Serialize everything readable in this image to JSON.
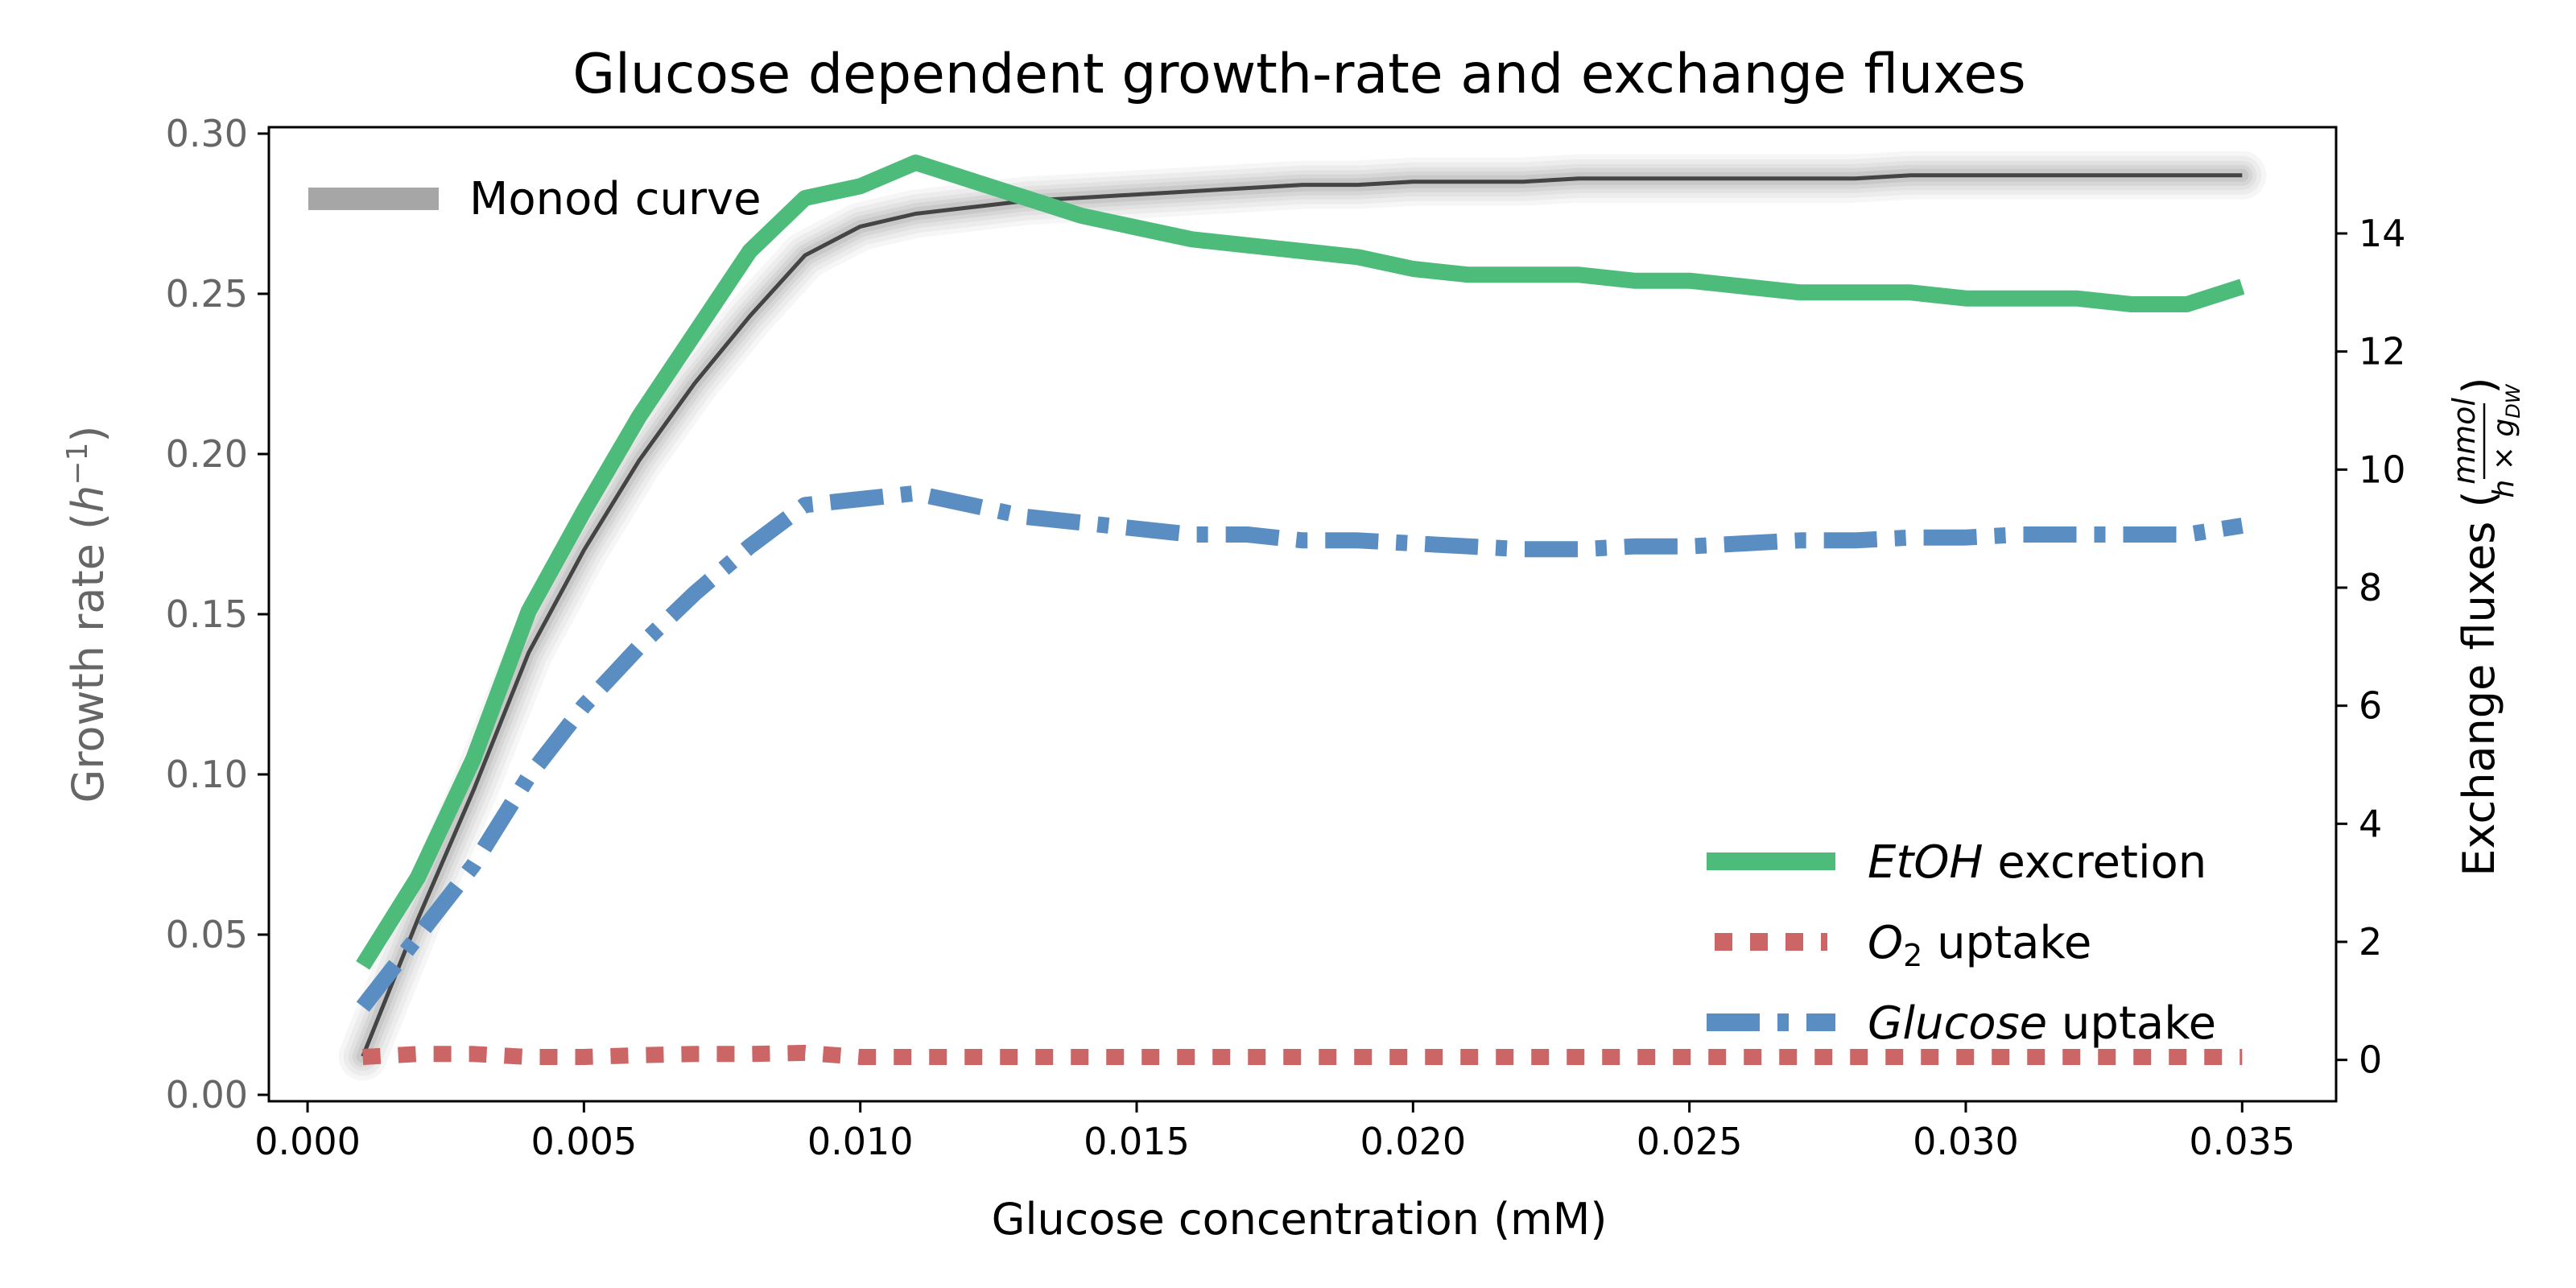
{
  "chart_data": {
    "type": "line",
    "title": "Glucose dependent growth-rate and exchange fluxes",
    "xlabel": "Glucose concentration (mM)",
    "ylabel_left": "Growth rate (h⁻¹)",
    "ylabel_right": "Exchange fluxes (mmol / h × g_DW)",
    "xlim": [
      -0.0007,
      0.0367
    ],
    "ylim_left": [
      -0.002,
      0.302
    ],
    "ylim_right": [
      -0.7,
      15.8
    ],
    "x_ticks": [
      "0.000",
      "0.005",
      "0.010",
      "0.015",
      "0.020",
      "0.025",
      "0.030",
      "0.035"
    ],
    "y_ticks_left": [
      "0.00",
      "0.05",
      "0.10",
      "0.15",
      "0.20",
      "0.25",
      "0.30"
    ],
    "y_ticks_right": [
      "0",
      "2",
      "4",
      "6",
      "8",
      "10",
      "12",
      "14"
    ],
    "grid": false,
    "legend_left": {
      "placement": "top-left",
      "entries": [
        "Monod curve"
      ]
    },
    "legend_right": {
      "placement": "bottom-right",
      "entries": [
        "EtOH excretion",
        "O2 uptake",
        "Glucose uptake"
      ]
    },
    "series": [
      {
        "name": "Monod curve",
        "axis": "left",
        "color": "#444444",
        "x": [
          0.001,
          0.002,
          0.003,
          0.004,
          0.005,
          0.006,
          0.007,
          0.008,
          0.009,
          0.01,
          0.011,
          0.012,
          0.013,
          0.014,
          0.015,
          0.016,
          0.017,
          0.018,
          0.019,
          0.02,
          0.021,
          0.022,
          0.023,
          0.024,
          0.025,
          0.026,
          0.027,
          0.028,
          0.029,
          0.03,
          0.031,
          0.032,
          0.033,
          0.034,
          0.035
        ],
        "values": [
          0.012,
          0.055,
          0.095,
          0.138,
          0.17,
          0.198,
          0.222,
          0.243,
          0.262,
          0.271,
          0.275,
          0.277,
          0.279,
          0.28,
          0.281,
          0.282,
          0.283,
          0.284,
          0.284,
          0.285,
          0.285,
          0.285,
          0.286,
          0.286,
          0.286,
          0.286,
          0.286,
          0.286,
          0.287,
          0.287,
          0.287,
          0.287,
          0.287,
          0.287,
          0.287
        ]
      },
      {
        "name": "EtOH excretion",
        "axis": "right",
        "color": "#4dbb7a",
        "x": [
          0.001,
          0.002,
          0.003,
          0.004,
          0.005,
          0.006,
          0.007,
          0.008,
          0.009,
          0.01,
          0.011,
          0.012,
          0.013,
          0.014,
          0.015,
          0.016,
          0.017,
          0.018,
          0.019,
          0.02,
          0.021,
          0.022,
          0.023,
          0.024,
          0.025,
          0.026,
          0.027,
          0.028,
          0.029,
          0.03,
          0.031,
          0.032,
          0.033,
          0.034,
          0.035
        ],
        "values": [
          1.6,
          3.1,
          5.1,
          7.6,
          9.3,
          10.9,
          12.3,
          13.7,
          14.6,
          14.8,
          15.2,
          14.9,
          14.6,
          14.3,
          14.1,
          13.9,
          13.8,
          13.7,
          13.6,
          13.4,
          13.3,
          13.3,
          13.3,
          13.2,
          13.2,
          13.1,
          13.0,
          13.0,
          13.0,
          12.9,
          12.9,
          12.9,
          12.8,
          12.8,
          13.1
        ]
      },
      {
        "name": "O2 uptake",
        "axis": "right",
        "color": "#cc6666",
        "x": [
          0.001,
          0.002,
          0.003,
          0.004,
          0.005,
          0.006,
          0.007,
          0.008,
          0.009,
          0.01,
          0.011,
          0.012,
          0.013,
          0.014,
          0.015,
          0.016,
          0.017,
          0.018,
          0.019,
          0.02,
          0.021,
          0.022,
          0.023,
          0.024,
          0.025,
          0.026,
          0.027,
          0.028,
          0.029,
          0.03,
          0.031,
          0.032,
          0.033,
          0.034,
          0.035
        ],
        "values": [
          0.05,
          0.1,
          0.1,
          0.05,
          0.05,
          0.08,
          0.1,
          0.1,
          0.12,
          0.05,
          0.05,
          0.05,
          0.05,
          0.05,
          0.05,
          0.05,
          0.05,
          0.05,
          0.05,
          0.05,
          0.05,
          0.05,
          0.05,
          0.05,
          0.05,
          0.05,
          0.05,
          0.05,
          0.05,
          0.05,
          0.05,
          0.05,
          0.05,
          0.05,
          0.05
        ]
      },
      {
        "name": "Glucose uptake",
        "axis": "right",
        "color": "#5a8ec2",
        "x": [
          0.001,
          0.002,
          0.003,
          0.004,
          0.005,
          0.006,
          0.007,
          0.008,
          0.009,
          0.01,
          0.011,
          0.012,
          0.013,
          0.014,
          0.015,
          0.016,
          0.017,
          0.018,
          0.019,
          0.02,
          0.021,
          0.022,
          0.023,
          0.024,
          0.025,
          0.026,
          0.027,
          0.028,
          0.029,
          0.03,
          0.031,
          0.032,
          0.033,
          0.034,
          0.035
        ],
        "values": [
          0.9,
          2.1,
          3.3,
          4.8,
          6.0,
          7.0,
          7.9,
          8.7,
          9.4,
          9.5,
          9.6,
          9.4,
          9.2,
          9.1,
          9.0,
          8.9,
          8.9,
          8.8,
          8.8,
          8.75,
          8.7,
          8.65,
          8.65,
          8.7,
          8.7,
          8.75,
          8.8,
          8.8,
          8.85,
          8.85,
          8.9,
          8.9,
          8.9,
          8.9,
          9.05
        ]
      }
    ]
  }
}
